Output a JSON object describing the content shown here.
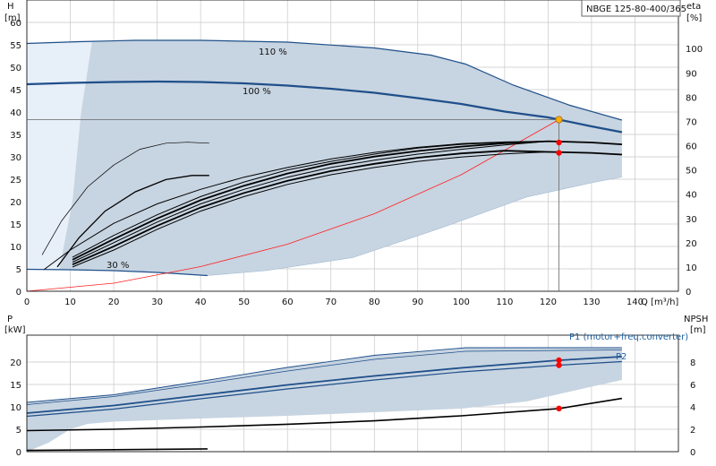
{
  "model": "NBGE 125-80-400/365",
  "colors": {
    "range_fill": "#c7d4e1",
    "range_edge": "#4a87c2",
    "light_fill": "#e7eff8",
    "head_line": "#1f4f8a",
    "system_curve": "#ff2020",
    "op_point": "#ffb000",
    "marker": "#ff0000",
    "eff_line": "#000000",
    "grid": "#c8c8c8"
  },
  "chart_data": [
    {
      "type": "line",
      "name": "upper",
      "xlabel": "Q [m³/h]",
      "x_ticks": [
        "0",
        "10",
        "20",
        "30",
        "40",
        "50",
        "60",
        "70",
        "80",
        "90",
        "100",
        "110",
        "120",
        "130",
        "140"
      ],
      "xlim": [
        0,
        150
      ],
      "ylabel_left": "H",
      "ylabel_left_unit": "[m]",
      "ylim_left": [
        0,
        65
      ],
      "y_ticks_left": [
        "0",
        "5",
        "10",
        "15",
        "20",
        "25",
        "30",
        "35",
        "40",
        "45",
        "50",
        "55",
        "60"
      ],
      "ylabel_right": "eta",
      "ylabel_right_unit": "[%]",
      "ylim_right": [
        0,
        120
      ],
      "y_ticks_right": [
        "0",
        "10",
        "20",
        "30",
        "40",
        "50",
        "60",
        "70",
        "80",
        "90",
        "100"
      ],
      "curve_labels": [
        "110 %",
        "100 %",
        "30 %"
      ],
      "op_flow": 122.5,
      "op_head": 38.3,
      "eff_markers": [
        33.2,
        30.9
      ],
      "series": {
        "max_110": {
          "x": [
            0,
            12,
            25,
            40,
            60,
            80,
            93,
            101,
            112,
            125,
            137
          ],
          "y": [
            55.3,
            55.7,
            56,
            56,
            55.6,
            54.3,
            52.7,
            50.7,
            46,
            41.5,
            38.2
          ]
        },
        "head_100": {
          "x": [
            0,
            10,
            20,
            30,
            40,
            50,
            60,
            70,
            80,
            90,
            100,
            110,
            120,
            122.5,
            130,
            137
          ],
          "y": [
            46.2,
            46.5,
            46.7,
            46.8,
            46.7,
            46.4,
            45.9,
            45.2,
            44.3,
            43.1,
            41.8,
            40.1,
            38.8,
            38.3,
            36.8,
            35.5
          ]
        },
        "min_30": {
          "x": [
            0,
            10,
            20,
            30,
            41.6
          ],
          "y": [
            4.9,
            4.8,
            4.6,
            4.2,
            3.5
          ]
        },
        "range_lower": {
          "x": [
            41.6,
            55,
            75,
            95,
            115,
            130,
            137
          ],
          "y": [
            3.5,
            4.6,
            7.5,
            14,
            21,
            24.2,
            25.5
          ]
        },
        "system_curve": {
          "x": [
            0,
            20,
            40,
            60,
            80,
            100,
            122.5
          ],
          "y": [
            0,
            1.8,
            5.5,
            10.5,
            17.3,
            26,
            38.3
          ]
        },
        "eff_thin": {
          "x": [
            3.5,
            8,
            14,
            20,
            26,
            32,
            37,
            42
          ],
          "y": [
            15,
            29,
            43,
            52,
            58.5,
            61,
            61.4,
            61
          ]
        },
        "eff_mid": {
          "x": [
            7,
            12,
            18,
            25,
            32,
            38,
            42
          ],
          "y": [
            10,
            22,
            33,
            41,
            46,
            47.7,
            47.7
          ]
        },
        "eff_a": {
          "x": [
            4,
            10,
            20,
            30,
            40,
            50,
            60,
            70,
            80,
            90,
            100,
            110,
            120,
            130,
            137
          ],
          "y": [
            9,
            17,
            28,
            36,
            42,
            47,
            51,
            54.5,
            57.2,
            59.3,
            60.8,
            61.5,
            61.8,
            61.3,
            60.5
          ]
        },
        "eff_b": {
          "x": [
            10.5,
            20,
            30,
            40,
            50,
            60,
            70,
            80,
            90,
            100,
            110,
            120,
            130,
            137
          ],
          "y": [
            14,
            23,
            31.5,
            39,
            45,
            50,
            53.5,
            56.5,
            59,
            60.5,
            61.4,
            61.8,
            61.3,
            60.5
          ]
        },
        "eff_c": {
          "x": [
            10.5,
            20,
            30,
            40,
            50,
            60,
            70,
            80,
            90,
            100,
            110,
            120,
            130,
            137
          ],
          "y": [
            13,
            21.5,
            30,
            37.5,
            43.5,
            48.5,
            52.5,
            55.5,
            57.8,
            59.6,
            61,
            61.8,
            61.3,
            60.5
          ]
        },
        "eff_d": {
          "x": [
            10.5,
            20,
            30,
            40,
            50,
            60,
            70,
            80,
            90,
            100,
            110,
            120,
            130,
            137
          ],
          "y": [
            12,
            20,
            28.5,
            36,
            42,
            47,
            51,
            54,
            56.5,
            58.5,
            60.3,
            61.8,
            61.3,
            60.5
          ]
        },
        "eff_lower_a": {
          "x": [
            10.5,
            20,
            30,
            40,
            50,
            60,
            70,
            80,
            90,
            100,
            110,
            120,
            130,
            137
          ],
          "y": [
            11,
            18.5,
            27,
            34.5,
            40.5,
            45.5,
            49.5,
            52.5,
            55,
            56.8,
            57.9,
            57.4,
            57,
            56.3
          ]
        },
        "eff_lower_b": {
          "x": [
            10.5,
            20,
            30,
            40,
            50,
            60,
            70,
            80,
            90,
            100,
            110,
            120,
            130,
            137
          ],
          "y": [
            10,
            17,
            25.5,
            33,
            39,
            44,
            48,
            51,
            53.5,
            55.3,
            56.6,
            57.4,
            57,
            56.3
          ]
        }
      }
    },
    {
      "type": "line",
      "name": "lower",
      "ylabel_left": "P",
      "ylabel_left_unit": "[kW]",
      "ylim_left": [
        0,
        26
      ],
      "y_ticks_left": [
        "0",
        "5",
        "10",
        "15",
        "20"
      ],
      "ylabel_right": "NPSH",
      "ylabel_right_unit": "[m]",
      "ylim_right": [
        0,
        10.4
      ],
      "y_ticks_right": [
        "0",
        "2",
        "4",
        "6",
        "8"
      ],
      "legend_p1": "P1 (motor+freq.converter)",
      "legend_p2": "P2",
      "p_markers": [
        20.4,
        19.3
      ],
      "npsh_marker": 3.85,
      "series": {
        "band_top": {
          "x": [
            0,
            20,
            40,
            60,
            80,
            101,
            137
          ],
          "y": [
            11,
            12.7,
            15.7,
            18.8,
            21.5,
            23.2,
            23.2
          ]
        },
        "band_bottom": {
          "x": [
            0,
            5,
            10,
            14,
            20,
            40,
            60,
            80,
            100,
            115,
            130,
            137
          ],
          "y": [
            0,
            2,
            5,
            6.2,
            6.7,
            7.4,
            8,
            8.8,
            9.6,
            11.2,
            14.5,
            16
          ]
        },
        "p1_outer": {
          "x": [
            0,
            20,
            40,
            60,
            80,
            101,
            137
          ],
          "y": [
            10.5,
            12.3,
            15.1,
            18,
            20.6,
            22.4,
            22.7
          ]
        },
        "p1": {
          "x": [
            0,
            20,
            40,
            60,
            80,
            100,
            122.5,
            137
          ],
          "y": [
            8.6,
            10.3,
            12.6,
            14.9,
            16.9,
            18.7,
            20.4,
            21.2
          ]
        },
        "p2": {
          "x": [
            0,
            20,
            40,
            60,
            80,
            100,
            122.5,
            137
          ],
          "y": [
            7.9,
            9.5,
            11.8,
            14,
            16,
            17.8,
            19.3,
            20.1
          ]
        },
        "npsh_base": {
          "x": [
            0,
            20,
            40,
            60,
            80,
            100,
            122.5,
            137
          ],
          "y": [
            1.88,
            2.0,
            2.2,
            2.45,
            2.75,
            3.2,
            3.85,
            4.75
          ]
        },
        "npsh_extra": {
          "x": [
            0,
            20,
            41.6
          ],
          "y": [
            0.12,
            0.18,
            0.25
          ]
        }
      }
    }
  ]
}
